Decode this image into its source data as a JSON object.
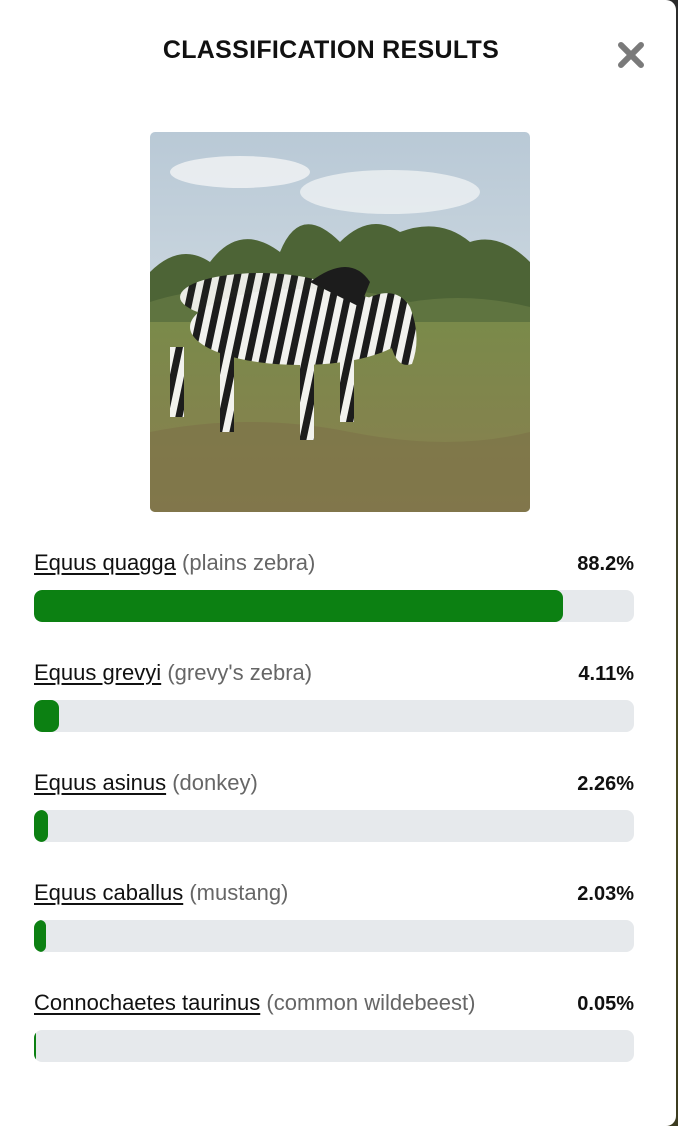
{
  "modal": {
    "title": "CLASSIFICATION RESULTS",
    "close_icon": "close-icon",
    "image_alt_icon": "zebra-photo"
  },
  "results": [
    {
      "scientific_name": "Equus quagga",
      "common_name": "(plains zebra)",
      "percent_label": "88.2%",
      "fraction": 0.882
    },
    {
      "scientific_name": "Equus grevyi",
      "common_name": "(grevy's zebra)",
      "percent_label": "4.11%",
      "fraction": 0.0411
    },
    {
      "scientific_name": "Equus asinus",
      "common_name": "(donkey)",
      "percent_label": "2.26%",
      "fraction": 0.0226
    },
    {
      "scientific_name": "Equus caballus",
      "common_name": "(mustang)",
      "percent_label": "2.03%",
      "fraction": 0.0203
    },
    {
      "scientific_name": "Connochaetes taurinus",
      "common_name": "(common wildebeest)",
      "percent_label": "0.05%",
      "fraction": 0.0005
    }
  ],
  "colors": {
    "bar_fill": "#0c8012",
    "bar_track": "#e6e9ec"
  }
}
